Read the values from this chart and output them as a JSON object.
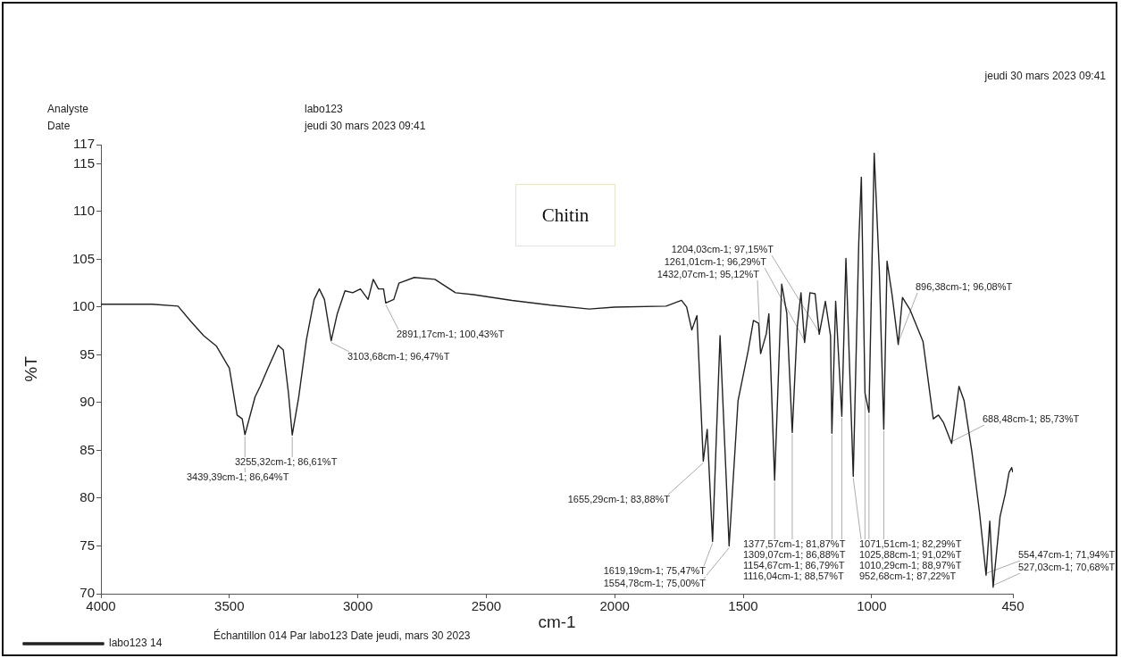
{
  "chart_data": {
    "type": "line",
    "title": "Chitin",
    "xlabel": "cm-1",
    "ylabel": "%T",
    "xlim": [
      4000,
      450
    ],
    "xticks": [
      4000,
      3500,
      3000,
      2500,
      2000,
      1500,
      1000,
      450
    ],
    "ylim": [
      70,
      117
    ],
    "yticks": [
      70,
      75,
      80,
      85,
      90,
      95,
      100,
      105,
      110,
      115,
      117
    ],
    "grid": false,
    "legend": "bottom left",
    "marker": "none",
    "line_style": "solid",
    "series": [
      {
        "name": "labo123 14",
        "color": "#222222",
        "x": [
          4000,
          3800,
          3700,
          3650,
          3600,
          3550,
          3500,
          3470,
          3450,
          3439.39,
          3400,
          3380,
          3350,
          3310,
          3290,
          3270,
          3255.32,
          3230,
          3200,
          3170,
          3150,
          3130,
          3103.68,
          3080,
          3050,
          3020,
          2990,
          2960,
          2940,
          2920,
          2900,
          2891.17,
          2860,
          2840,
          2780,
          2700,
          2620,
          2550,
          2400,
          2250,
          2100,
          2000,
          1800,
          1740,
          1720,
          1700,
          1680,
          1655.29,
          1640,
          1619.19,
          1590,
          1554.78,
          1520,
          1480,
          1460,
          1440,
          1432.07,
          1410,
          1400,
          1377.57,
          1350,
          1330,
          1309.07,
          1290,
          1275,
          1261.01,
          1240,
          1220,
          1204.03,
          1180,
          1160,
          1154.67,
          1140,
          1116.04,
          1100,
          1071.51,
          1050,
          1040,
          1025.88,
          1010.29,
          990,
          970,
          952.68,
          940,
          920,
          896.38,
          880,
          850,
          800,
          760,
          740,
          720,
          688.48,
          660,
          640,
          610,
          580,
          554.47,
          540,
          527.03,
          500,
          480,
          465,
          455,
          450
        ],
        "values": [
          100.3,
          100.3,
          100.1,
          98.5,
          97.0,
          95.9,
          93.6,
          88.7,
          88.3,
          86.64,
          90.6,
          91.7,
          93.6,
          96.0,
          95.5,
          91.0,
          86.61,
          90.6,
          96.6,
          100.8,
          101.9,
          100.8,
          96.47,
          99.3,
          101.7,
          101.5,
          101.9,
          100.8,
          102.9,
          101.9,
          101.9,
          100.43,
          100.8,
          102.5,
          103.1,
          102.9,
          101.5,
          101.3,
          100.7,
          100.2,
          99.8,
          100.0,
          100.1,
          100.7,
          100.0,
          97.6,
          99.1,
          83.88,
          87.2,
          75.47,
          97.0,
          75.0,
          90.2,
          95.5,
          98.6,
          98.3,
          95.12,
          97.2,
          99.3,
          81.87,
          102.4,
          99.3,
          86.88,
          97.8,
          101.5,
          96.29,
          101.5,
          101.4,
          97.15,
          100.6,
          97.0,
          86.79,
          100.6,
          88.57,
          105.1,
          82.29,
          106.8,
          113.6,
          91.02,
          88.97,
          116.1,
          103.8,
          87.22,
          104.8,
          101.2,
          96.08,
          101.0,
          99.7,
          96.4,
          88.3,
          88.7,
          87.9,
          85.73,
          91.7,
          90.2,
          84.9,
          78.5,
          71.94,
          77.6,
          70.68,
          78.1,
          80.4,
          82.7,
          83.2,
          82.7
        ]
      }
    ],
    "annotations": [
      "Analyste",
      "labo123",
      "Date",
      "jeudi 30 mars 2023 09:41",
      "jeudi 30 mars 2023 09:41",
      "Échantillon 014 Par labo123 Date jeudi, mars 30 2023",
      {
        "text": "2891,17cm-1; 100,43%T",
        "x": 2891.17,
        "y": 100.43
      },
      {
        "text": "3103,68cm-1; 96,47%T",
        "x": 3103.68,
        "y": 96.47
      },
      {
        "text": "3255,32cm-1; 86,61%T",
        "x": 3255.32,
        "y": 86.61
      },
      {
        "text": "3439,39cm-1; 86,64%T",
        "x": 3439.39,
        "y": 86.64
      },
      {
        "text": "1432,07cm-1; 95,12%T",
        "x": 1432.07,
        "y": 95.12
      },
      {
        "text": "1261,01cm-1; 96,29%T",
        "x": 1261.01,
        "y": 96.29
      },
      {
        "text": "896,38cm-1; 96,08%T",
        "x": 896.38,
        "y": 96.08
      },
      {
        "text": "1025,88cm-1; 91,02%T",
        "x": 1025.88,
        "y": 91.02
      },
      {
        "text": "1204,03cm-1; 97,15%T",
        "x": 1204.03,
        "y": 97.15
      },
      {
        "text": "1116,04cm-1; 88,57%T",
        "x": 1116.04,
        "y": 88.57
      },
      {
        "text": "1154,67cm-1; 86,79%T",
        "x": 1154.67,
        "y": 86.79
      },
      {
        "text": "1309,07cm-1; 86,88%T",
        "x": 1309.07,
        "y": 86.88
      },
      {
        "text": "688,48cm-1; 85,73%T",
        "x": 688.48,
        "y": 85.73
      },
      {
        "text": "1655,29cm-1; 83,88%T",
        "x": 1655.29,
        "y": 83.88
      },
      {
        "text": "952,68cm-1; 87,22%T",
        "x": 952.68,
        "y": 87.22
      },
      {
        "text": "1377,57cm-1; 81,87%T",
        "x": 1377.57,
        "y": 81.87
      },
      {
        "text": "1071,51cm-1; 82,29%T",
        "x": 1071.51,
        "y": 82.29
      },
      {
        "text": "1010,29cm-1; 88,97%T",
        "x": 1010.29,
        "y": 88.97
      },
      {
        "text": "554,47cm-1; 71,94%T",
        "x": 554.47,
        "y": 71.94
      },
      {
        "text": "527,03cm-1; 70,68%T",
        "x": 527.03,
        "y": 70.68
      },
      {
        "text": "1554,78cm-1; 75,00%T",
        "x": 1554.78,
        "y": 75.0
      },
      {
        "text": "1619,19cm-1; 75,47%T",
        "x": 1619.19,
        "y": 75.47
      }
    ]
  }
}
